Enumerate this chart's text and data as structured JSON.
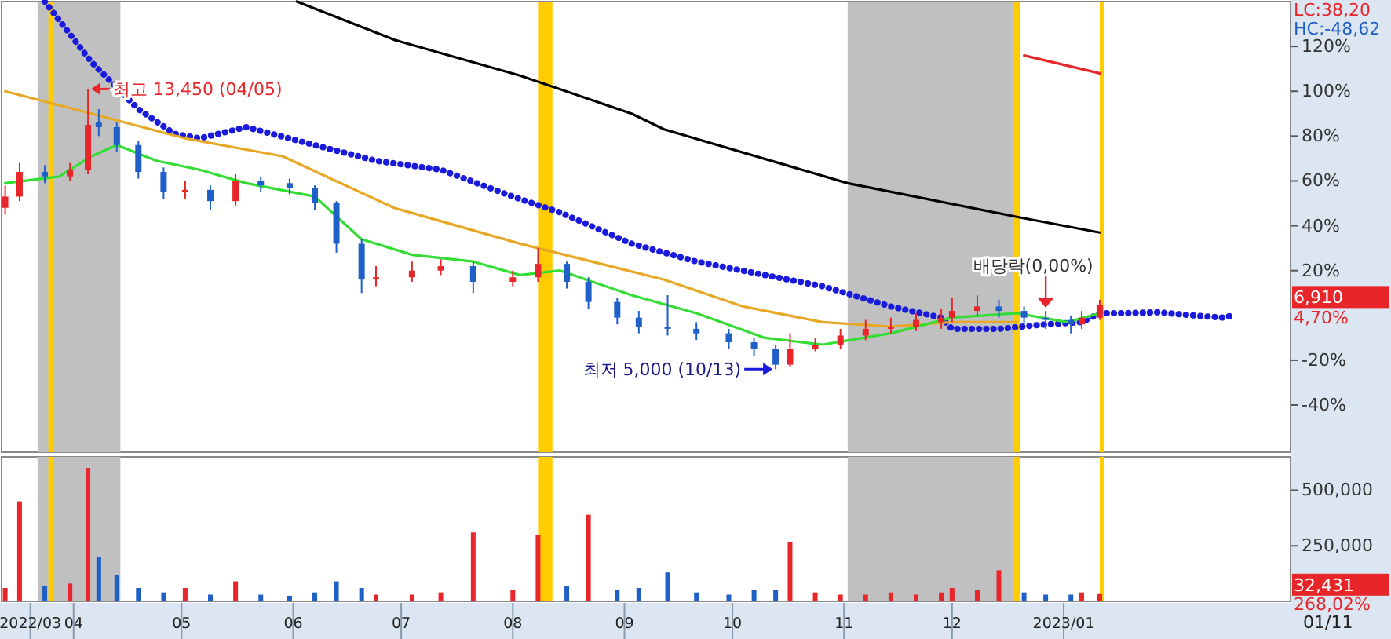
{
  "chart_data": [
    {
      "type": "candlestick",
      "xlim": [
        "2022-03-12",
        "2023-03-05"
      ],
      "ylim": [
        -61,
        140
      ],
      "tick_labels": "y",
      "yticks": [
        {
          "value": 120,
          "label": "120%"
        },
        {
          "value": 100,
          "label": "100%"
        },
        {
          "value": 80,
          "label": "80%"
        },
        {
          "value": 60,
          "label": "60%"
        },
        {
          "value": 40,
          "label": "40%"
        },
        {
          "value": 20,
          "label": "20%"
        },
        {
          "value": -20,
          "label": "-20%"
        },
        {
          "value": -40,
          "label": "-40%"
        }
      ],
      "x": [
        "2022-03-13",
        "2022-03-17",
        "2022-03-24",
        "2022-03-31",
        "2022-04-05",
        "2022-04-08",
        "2022-04-13",
        "2022-04-19",
        "2022-04-26",
        "2022-05-02",
        "2022-05-09",
        "2022-05-16",
        "2022-05-23",
        "2022-05-31",
        "2022-06-07",
        "2022-06-13",
        "2022-06-20",
        "2022-06-24",
        "2022-07-04",
        "2022-07-12",
        "2022-07-21",
        "2022-08-01",
        "2022-08-08",
        "2022-08-16",
        "2022-08-22",
        "2022-08-30",
        "2022-09-05",
        "2022-09-13",
        "2022-09-21",
        "2022-09-30",
        "2022-10-07",
        "2022-10-13",
        "2022-10-17",
        "2022-10-24",
        "2022-10-31",
        "2022-11-07",
        "2022-11-14",
        "2022-11-21",
        "2022-11-28",
        "2022-12-01",
        "2022-12-08",
        "2022-12-14",
        "2022-12-21",
        "2022-12-27",
        "2023-01-03",
        "2023-01-06",
        "2023-01-11"
      ],
      "ohlc": [
        [
          48,
          58,
          45,
          53
        ],
        [
          53,
          68,
          51,
          64
        ],
        [
          64,
          67,
          59,
          62
        ],
        [
          62,
          68,
          60,
          65
        ],
        [
          65,
          101,
          63,
          85
        ],
        [
          86,
          92,
          80,
          84
        ],
        [
          84,
          86,
          73,
          76
        ],
        [
          76,
          78,
          61,
          64
        ],
        [
          64,
          66,
          52,
          55
        ],
        [
          55,
          60,
          52,
          56
        ],
        [
          56,
          58,
          47,
          51
        ],
        [
          51,
          63,
          49,
          60
        ],
        [
          60,
          62,
          55,
          58
        ],
        [
          59,
          61,
          54,
          57
        ],
        [
          57,
          58,
          47,
          50
        ],
        [
          50,
          51,
          28,
          32
        ],
        [
          32,
          34,
          10,
          16
        ],
        [
          16,
          22,
          13,
          17
        ],
        [
          17,
          24,
          15,
          20
        ],
        [
          20,
          25,
          18,
          22
        ],
        [
          22,
          24,
          10,
          15
        ],
        [
          15,
          20,
          13,
          17
        ],
        [
          17,
          30,
          15,
          23
        ],
        [
          23,
          24,
          12,
          15
        ],
        [
          15,
          17,
          3,
          6
        ],
        [
          6,
          8,
          -4,
          -1
        ],
        [
          -1,
          2,
          -8,
          -5
        ],
        [
          -5,
          9,
          -9,
          -6
        ],
        [
          -6,
          -3,
          -11,
          -8
        ],
        [
          -8,
          -6,
          -15,
          -12
        ],
        [
          -12,
          -10,
          -18,
          -15
        ],
        [
          -15,
          -13,
          -24,
          -22
        ],
        [
          -22,
          -8,
          -23,
          -15
        ],
        [
          -15,
          -10,
          -16,
          -13
        ],
        [
          -13,
          -6,
          -15,
          -9
        ],
        [
          -9,
          -2,
          -11,
          -6
        ],
        [
          -6,
          -1,
          -8,
          -5
        ],
        [
          -5,
          1,
          -7,
          -2
        ],
        [
          -3,
          3,
          -6,
          -1
        ],
        [
          -1,
          8,
          -3,
          2
        ],
        [
          2,
          9,
          0,
          4
        ],
        [
          4,
          7,
          -1,
          2
        ],
        [
          2,
          4,
          -4,
          -1
        ],
        [
          -1,
          2,
          -6,
          -2
        ],
        [
          -2,
          0,
          -8,
          -4
        ],
        [
          -4,
          2,
          -6,
          -1
        ],
        [
          -1,
          7,
          -2,
          4.7
        ]
      ],
      "series": [
        {
          "type": "line",
          "color": "#000000",
          "x": [
            "2022-06-02",
            "2022-06-29",
            "2022-08-03",
            "2022-09-03",
            "2022-09-12",
            "2022-11-02",
            "2022-12-19",
            "2023-01-11"
          ],
          "values": [
            140,
            123,
            107,
            90,
            83,
            59,
            44,
            37
          ]
        },
        {
          "type": "line",
          "color": "#e8262a",
          "x": [
            "2022-12-21",
            "2023-01-11"
          ],
          "values": [
            116,
            108
          ]
        },
        {
          "type": "line",
          "color": "#1a1adc",
          "line_style": "dotted",
          "x": [
            "2022-03-24",
            "2022-04-06",
            "2022-04-19",
            "2022-04-29",
            "2022-05-06",
            "2022-05-19",
            "2022-06-07",
            "2022-06-24",
            "2022-07-12",
            "2022-08-01",
            "2022-08-14",
            "2022-09-03",
            "2022-09-21",
            "2022-10-10",
            "2022-10-26",
            "2022-11-14",
            "2022-11-28",
            "2022-12-01",
            "2022-12-14",
            "2022-12-27",
            "2023-01-06",
            "2023-01-11",
            "2023-01-18",
            "2023-01-27",
            "2023-02-06",
            "2023-02-14",
            "2023-02-17"
          ],
          "values": [
            140,
            113,
            92,
            81,
            79,
            84,
            76,
            69,
            65,
            53,
            46,
            32,
            24,
            18,
            13,
            4,
            -1,
            -6,
            -6,
            -4,
            -3,
            1,
            1,
            1.4,
            0,
            -1,
            0
          ]
        },
        {
          "type": "line",
          "color": "#e8a825",
          "x": [
            "2022-03-13",
            "2022-04-06",
            "2022-05-02",
            "2022-05-29",
            "2022-06-29",
            "2022-08-03",
            "2022-09-12",
            "2022-10-04",
            "2022-10-26",
            "2022-11-14",
            "2022-12-01",
            "2022-12-19"
          ],
          "values": [
            100,
            90,
            79,
            71,
            48,
            32,
            16,
            4,
            -3,
            -5,
            -3,
            -3
          ]
        },
        {
          "type": "line",
          "color": "#33dd33",
          "x": [
            "2022-03-13",
            "2022-03-28",
            "2022-04-06",
            "2022-04-13",
            "2022-04-24",
            "2022-05-06",
            "2022-05-19",
            "2022-06-07",
            "2022-06-20",
            "2022-07-04",
            "2022-07-21",
            "2022-08-03",
            "2022-08-14",
            "2022-09-03",
            "2022-09-21",
            "2022-10-10",
            "2022-10-26",
            "2022-11-14",
            "2022-12-01",
            "2022-12-19",
            "2023-01-02",
            "2023-01-11"
          ],
          "values": [
            59,
            62,
            71,
            76,
            69,
            65,
            59,
            53,
            34,
            27,
            24,
            18,
            20,
            9,
            1,
            -10,
            -13,
            -8,
            -1,
            1,
            -3,
            1
          ]
        }
      ],
      "bands": [
        {
          "axis": "x",
          "from": "2022-03-22",
          "to": "2022-04-14",
          "color": "#c0c0c0"
        },
        {
          "axis": "x",
          "from": "2022-11-02",
          "to": "2022-12-18",
          "color": "#c0c0c0"
        },
        {
          "axis": "x",
          "from": "2022-03-25",
          "to": "2022-03-26",
          "color": "#ffcc00"
        },
        {
          "axis": "x",
          "from": "2022-08-08",
          "to": "2022-08-12",
          "color": "#ffcc00"
        },
        {
          "axis": "x",
          "from": "2022-12-18",
          "to": "2022-12-20",
          "color": "#ffcc00"
        },
        {
          "axis": "x",
          "from": "2023-01-11",
          "to": "2023-01-12",
          "color": "#ffcc00"
        }
      ],
      "annotations": [
        {
          "text": "최고 13,450 (04/05)",
          "x": "2022-04-05",
          "y": 101
        },
        {
          "text": "최저 5,000 (10/13)",
          "x": "2022-10-13",
          "y": -24
        },
        {
          "text": "배당락(0,00%)",
          "x": "2022-12-27",
          "y": 2
        },
        "LC:38,20",
        "HC:-48,62",
        "6,910",
        "4,70%"
      ]
    },
    {
      "type": "bar",
      "xlim": [
        "2022-03-12",
        "2023-03-05"
      ],
      "ylim": [
        0,
        650000
      ],
      "yticks": [
        {
          "value": 500000,
          "label": "500,000"
        },
        {
          "value": 250000,
          "label": "250,000"
        }
      ],
      "xticks": [
        {
          "value": "2022-03-20",
          "label": "2022/03"
        },
        {
          "value": "2022-04-01",
          "label": "04"
        },
        {
          "value": "2022-05-01",
          "label": "05"
        },
        {
          "value": "2022-06-01",
          "label": "06"
        },
        {
          "value": "2022-07-01",
          "label": "07"
        },
        {
          "value": "2022-08-01",
          "label": "08"
        },
        {
          "value": "2022-09-01",
          "label": "09"
        },
        {
          "value": "2022-10-01",
          "label": "10"
        },
        {
          "value": "2022-11-01",
          "label": "11"
        },
        {
          "value": "2022-12-01",
          "label": "12"
        },
        {
          "value": "2023-01-01",
          "label": "2023/01"
        }
      ],
      "x": [
        "2022-03-13",
        "2022-03-17",
        "2022-03-24",
        "2022-03-31",
        "2022-04-05",
        "2022-04-08",
        "2022-04-13",
        "2022-04-19",
        "2022-04-26",
        "2022-05-02",
        "2022-05-09",
        "2022-05-16",
        "2022-05-23",
        "2022-05-31",
        "2022-06-07",
        "2022-06-13",
        "2022-06-20",
        "2022-06-24",
        "2022-07-04",
        "2022-07-12",
        "2022-07-21",
        "2022-08-01",
        "2022-08-08",
        "2022-08-16",
        "2022-08-22",
        "2022-08-30",
        "2022-09-05",
        "2022-09-13",
        "2022-09-21",
        "2022-09-30",
        "2022-10-07",
        "2022-10-13",
        "2022-10-17",
        "2022-10-24",
        "2022-10-31",
        "2022-11-07",
        "2022-11-14",
        "2022-11-21",
        "2022-11-28",
        "2022-12-01",
        "2022-12-08",
        "2022-12-14",
        "2022-12-21",
        "2022-12-27",
        "2023-01-03",
        "2023-01-06",
        "2023-01-11"
      ],
      "values": [
        60000,
        450000,
        70000,
        80000,
        600000,
        200000,
        120000,
        60000,
        40000,
        60000,
        30000,
        90000,
        30000,
        25000,
        40000,
        90000,
        60000,
        30000,
        30000,
        40000,
        310000,
        50000,
        300000,
        70000,
        390000,
        50000,
        60000,
        130000,
        40000,
        30000,
        50000,
        50000,
        265000,
        40000,
        30000,
        30000,
        40000,
        30000,
        40000,
        60000,
        50000,
        140000,
        40000,
        30000,
        30000,
        40000,
        32431
      ],
      "colors": [
        "#e8262a",
        "#e8262a",
        "#1f5fc8",
        "#e8262a",
        "#e8262a",
        "#1f5fc8",
        "#1f5fc8",
        "#1f5fc8",
        "#1f5fc8",
        "#e8262a",
        "#1f5fc8",
        "#e8262a",
        "#1f5fc8",
        "#1f5fc8",
        "#1f5fc8",
        "#1f5fc8",
        "#1f5fc8",
        "#e8262a",
        "#e8262a",
        "#e8262a",
        "#e8262a",
        "#e8262a",
        "#e8262a",
        "#1f5fc8",
        "#e8262a",
        "#1f5fc8",
        "#1f5fc8",
        "#1f5fc8",
        "#1f5fc8",
        "#1f5fc8",
        "#1f5fc8",
        "#1f5fc8",
        "#e8262a",
        "#e8262a",
        "#e8262a",
        "#e8262a",
        "#e8262a",
        "#e8262a",
        "#e8262a",
        "#e8262a",
        "#e8262a",
        "#e8262a",
        "#1f5fc8",
        "#1f5fc8",
        "#1f5fc8",
        "#e8262a",
        "#e8262a"
      ],
      "bands": [
        {
          "axis": "x",
          "from": "2022-03-22",
          "to": "2022-04-14",
          "color": "#c0c0c0"
        },
        {
          "axis": "x",
          "from": "2022-11-02",
          "to": "2022-12-18",
          "color": "#c0c0c0"
        },
        {
          "axis": "x",
          "from": "2022-03-25",
          "to": "2022-03-26",
          "color": "#ffcc00"
        },
        {
          "axis": "x",
          "from": "2022-08-08",
          "to": "2022-08-12",
          "color": "#ffcc00"
        },
        {
          "axis": "x",
          "from": "2022-12-18",
          "to": "2022-12-20",
          "color": "#ffcc00"
        },
        {
          "axis": "x",
          "from": "2023-01-11",
          "to": "2023-01-12",
          "color": "#ffcc00"
        }
      ],
      "annotations": [
        "32,431",
        "268,02%",
        "01/11"
      ]
    }
  ]
}
